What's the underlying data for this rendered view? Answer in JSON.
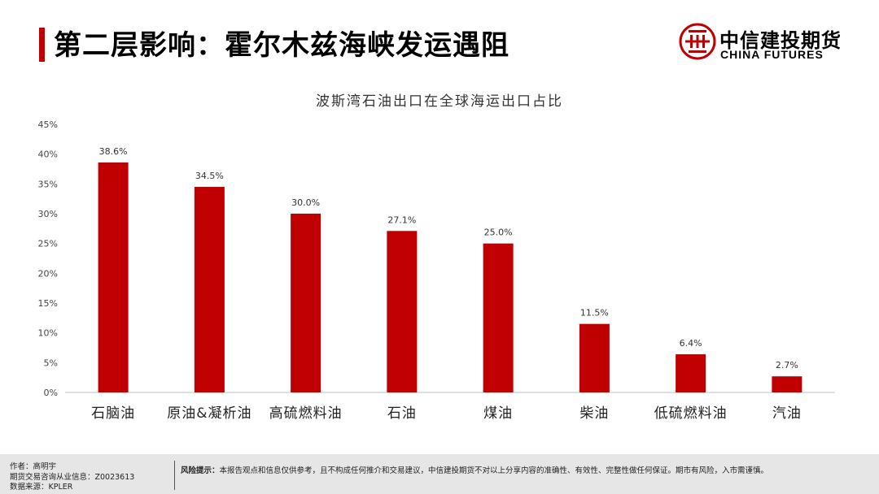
{
  "header": {
    "title": "第二层影响：霍尔木兹海峡发运遇阻",
    "accent_color": "#c00000"
  },
  "logo": {
    "name_cn": "中信建投期货",
    "name_en": "CHINA FUTURES",
    "icon": "citic-logo-icon",
    "color": "#c00000"
  },
  "chart_data": {
    "type": "bar",
    "title": "波斯湾石油出口在全球海运出口占比",
    "categories": [
      "石脑油",
      "原油&凝析油",
      "高硫燃料油",
      "石油",
      "煤油",
      "柴油",
      "低硫燃料油",
      "汽油"
    ],
    "values": [
      38.6,
      34.5,
      30.0,
      27.1,
      25.0,
      11.5,
      6.4,
      2.7
    ],
    "data_labels": [
      "38.6%",
      "34.5%",
      "30.0%",
      "27.1%",
      "25.0%",
      "11.5%",
      "6.4%",
      "2.7%"
    ],
    "yticks": [
      "0%",
      "5%",
      "10%",
      "15%",
      "20%",
      "25%",
      "30%",
      "35%",
      "40%",
      "45%"
    ],
    "ylim": [
      0,
      45
    ],
    "xlabel": "",
    "ylabel": "",
    "grid": false,
    "bar_color": "#c00000"
  },
  "footer": {
    "author": "作者：高明宇",
    "license": "期货交易咨询从业信息：Z0023613",
    "source": "数据来源：KPLER",
    "risk_label": "风险提示：",
    "risk_text": "本报告观点和信息仅供参考，且不构成任何推介和交易建议，中信建投期货不对以上分享内容的准确性、有效性、完整性做任何保证。期市有风险，入市需谨慎。"
  }
}
